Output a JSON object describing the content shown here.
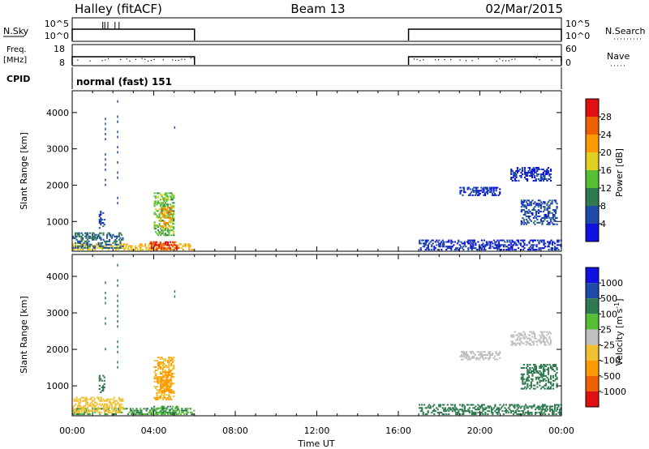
{
  "header": {
    "station": "Halley (fitACF)",
    "beam": "Beam 13",
    "date": "02/Mar/2015"
  },
  "strips": {
    "nsky_label": "N.Sky",
    "nsky_ticks": [
      "10^5",
      "10^0"
    ],
    "nsearch_label": "N.Search",
    "nsearch_ticks": [
      "10^5",
      "10^0"
    ],
    "freq_label": "Freq.",
    "freq_unit": "[MHz]",
    "freq_ticks": [
      "18",
      "8"
    ],
    "nave_label": "Nave",
    "nave_ticks": [
      "60",
      "0"
    ],
    "cpid_label": "CPID",
    "cpid_value": "normal (fast) 151"
  },
  "xaxis": {
    "label": "Time UT",
    "ticks": [
      "00:00",
      "04:00",
      "08:00",
      "12:00",
      "16:00",
      "20:00",
      "00:00"
    ]
  },
  "colors": {
    "power": [
      "#1010e0",
      "#1e4aa8",
      "#2f7a50",
      "#55c035",
      "#e0d020",
      "#ff9a00",
      "#f06000",
      "#e01010"
    ],
    "velocity": [
      "#e01010",
      "#f06000",
      "#ff9a00",
      "#f0c030",
      "#c0c0c0",
      "#55c035",
      "#2f7a50",
      "#1e4aa8",
      "#1010e0"
    ]
  },
  "chart_data": [
    {
      "type": "heatmap",
      "title": "Power",
      "ylabel": "Slant Range [km]",
      "xlabel": "",
      "yticks": [
        "1000",
        "2000",
        "3000",
        "4000"
      ],
      "ylim": [
        180,
        4600
      ],
      "xlim_hours": [
        0,
        24
      ],
      "colorbar_label": "Power [dB]",
      "colorbar_ticks": [
        "4",
        "8",
        "12",
        "16",
        "20",
        "24",
        "28"
      ],
      "colorbar_range": [
        0,
        32
      ],
      "regions": [
        {
          "t0": 0.0,
          "t1": 6.0,
          "r0": 200,
          "r1": 400,
          "level": 20
        },
        {
          "t0": 3.8,
          "t1": 5.2,
          "r0": 200,
          "r1": 450,
          "level": 28
        },
        {
          "t0": 4.0,
          "t1": 5.0,
          "r0": 600,
          "r1": 1800,
          "level": 14
        },
        {
          "t0": 4.3,
          "t1": 4.9,
          "r0": 800,
          "r1": 1400,
          "level": 22
        },
        {
          "t0": 1.3,
          "t1": 1.6,
          "r0": 800,
          "r1": 1300,
          "level": 6
        },
        {
          "t0": 0.0,
          "t1": 2.5,
          "r0": 250,
          "r1": 700,
          "level": 8
        },
        {
          "t0": 17.0,
          "t1": 24.0,
          "r0": 200,
          "r1": 500,
          "level": 4
        },
        {
          "t0": 19.0,
          "t1": 21.0,
          "r0": 1700,
          "r1": 1950,
          "level": 4
        },
        {
          "t0": 21.5,
          "t1": 23.5,
          "r0": 2100,
          "r1": 2500,
          "level": 4
        },
        {
          "t0": 22.0,
          "t1": 23.8,
          "r0": 900,
          "r1": 1600,
          "level": 6
        }
      ]
    },
    {
      "type": "heatmap",
      "title": "Velocity",
      "ylabel": "Slant Range [km]",
      "xlabel": "Time UT",
      "yticks": [
        "1000",
        "2000",
        "3000",
        "4000"
      ],
      "ylim": [
        180,
        4600
      ],
      "xlim_hours": [
        0,
        24
      ],
      "colorbar_label": "Velocity [m s",
      "colorbar_unit_sup": "-1",
      "colorbar_ticks": [
        "1000",
        "500",
        "100",
        "25",
        "-25",
        "-100",
        "-500",
        "-1000"
      ],
      "regions": [
        {
          "t0": 0.0,
          "t1": 6.0,
          "r0": 200,
          "r1": 400,
          "level": 100
        },
        {
          "t0": 3.8,
          "t1": 5.2,
          "r0": 200,
          "r1": 450,
          "level": 100
        },
        {
          "t0": 4.0,
          "t1": 5.0,
          "r0": 600,
          "r1": 1800,
          "level": -100
        },
        {
          "t0": 4.3,
          "t1": 4.9,
          "r0": 800,
          "r1": 1400,
          "level": -300
        },
        {
          "t0": 1.3,
          "t1": 1.6,
          "r0": 800,
          "r1": 1300,
          "level": 300
        },
        {
          "t0": 0.0,
          "t1": 2.5,
          "r0": 250,
          "r1": 700,
          "level": -50
        },
        {
          "t0": 17.0,
          "t1": 24.0,
          "r0": 200,
          "r1": 500,
          "level": 150
        },
        {
          "t0": 19.0,
          "t1": 21.0,
          "r0": 1700,
          "r1": 1950,
          "level": 0
        },
        {
          "t0": 21.5,
          "t1": 23.5,
          "r0": 2100,
          "r1": 2500,
          "level": 0
        },
        {
          "t0": 22.0,
          "t1": 23.8,
          "r0": 900,
          "r1": 1600,
          "level": 300
        }
      ]
    }
  ]
}
